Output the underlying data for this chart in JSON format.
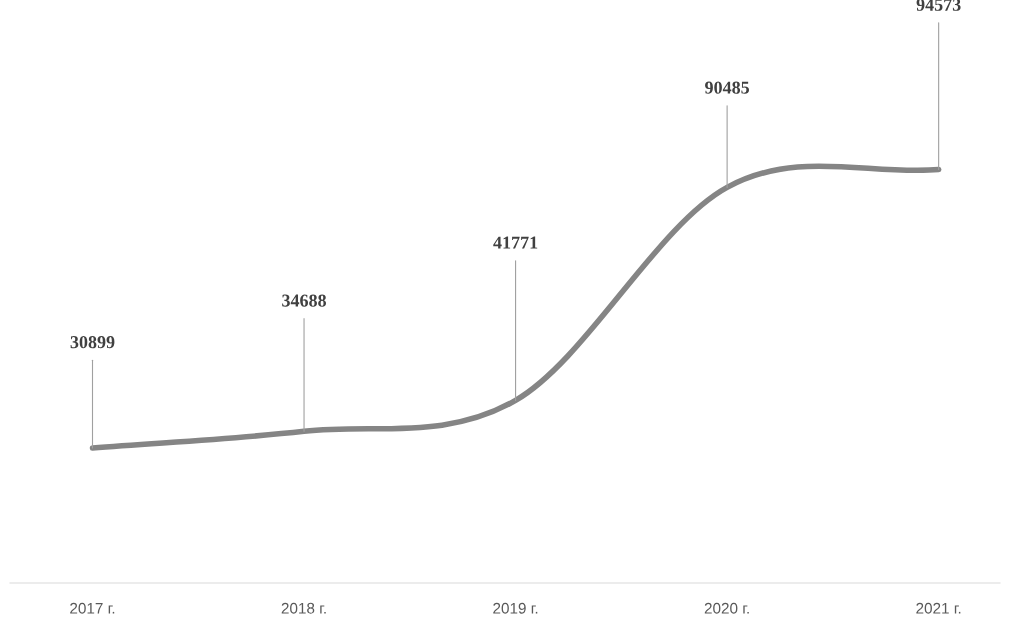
{
  "chart_data": {
    "type": "line",
    "categories": [
      "2017 г.",
      "2018 г.",
      "2019 г.",
      "2020 г.",
      "2021 г."
    ],
    "series": [
      {
        "color": "#858585",
        "values": [
          30899,
          34688,
          41771,
          90485,
          94573
        ],
        "value_labels": [
          "30899",
          "34688",
          "41771",
          "90485",
          "94573"
        ]
      }
    ],
    "marker": "none",
    "line_style": "solid"
  }
}
